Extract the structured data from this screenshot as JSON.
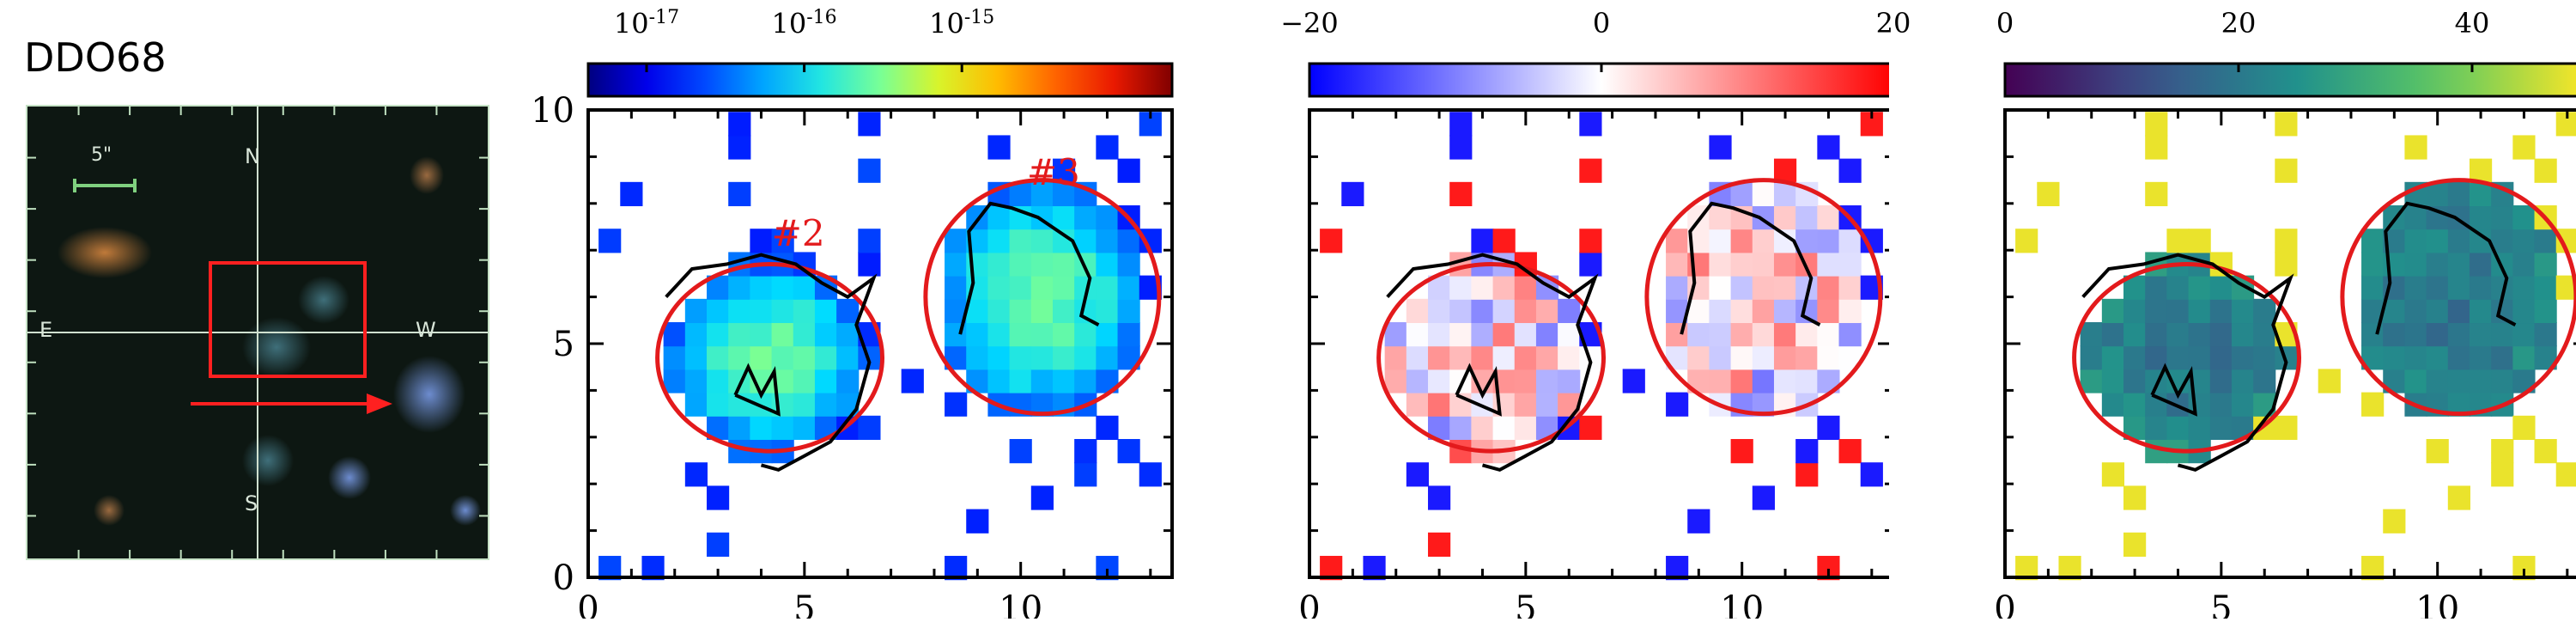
{
  "figure": {
    "title": "DDO68",
    "thumbnail": {
      "compass": {
        "north": "N",
        "south": "S",
        "east": "E",
        "west": "W"
      },
      "scale_label": "5\"",
      "colors": {
        "box": "#ff2020",
        "crosshair": "#cfe0cf",
        "arrow": "#ff2020",
        "frame_ticks": "#bfe0bf"
      }
    },
    "regions": [
      "#2",
      "#3"
    ],
    "region_color": "#e31a1c",
    "contour_color": "#000000"
  },
  "panels": [
    {
      "id": "flux",
      "colorbar": {
        "scale": "log",
        "colormap": "jet",
        "tick_labels": [
          "10^{-17}",
          "10^{-16}",
          "10^{-15}"
        ]
      },
      "axes": {
        "xlim": [
          0,
          13.5
        ],
        "ylim": [
          0,
          10
        ],
        "xticks": [
          "0",
          "5",
          "10"
        ],
        "yticks": [
          "0",
          "5",
          "10"
        ]
      }
    },
    {
      "id": "velocity",
      "colorbar": {
        "scale": "linear",
        "colormap": "bwr",
        "tick_labels": [
          "−20",
          "0",
          "20"
        ]
      },
      "axes": {
        "xlim": [
          0,
          13.5
        ],
        "ylim": [
          0,
          10
        ],
        "xticks": [
          "0",
          "5",
          "10"
        ],
        "yticks": []
      }
    },
    {
      "id": "dispersion",
      "colorbar": {
        "scale": "linear",
        "colormap": "viridis",
        "tick_labels": [
          "0",
          "20",
          "40"
        ]
      },
      "axes": {
        "xlim": [
          0,
          13.5
        ],
        "ylim": [
          0,
          10
        ],
        "xticks": [
          "0",
          "5",
          "10"
        ],
        "yticks": []
      }
    }
  ],
  "chart_data": {
    "type": "heatmap",
    "xlim": [
      0,
      13.5
    ],
    "ylim": [
      0,
      10
    ],
    "grid": false,
    "regions": [
      {
        "label": "#2",
        "center": [
          4.2,
          4.7
        ],
        "semi_axes": [
          2.6,
          2.0
        ]
      },
      {
        "label": "#3",
        "center": [
          10.5,
          6.0
        ],
        "semi_axes": [
          2.7,
          2.5
        ]
      }
    ],
    "colorbars": [
      {
        "panel": 1,
        "scale": "log",
        "range": [
          3e-18,
          1e-14
        ]
      },
      {
        "panel": 2,
        "scale": "linear",
        "range": [
          -20,
          20
        ]
      },
      {
        "panel": 3,
        "scale": "linear",
        "range": [
          0,
          50
        ]
      }
    ]
  }
}
